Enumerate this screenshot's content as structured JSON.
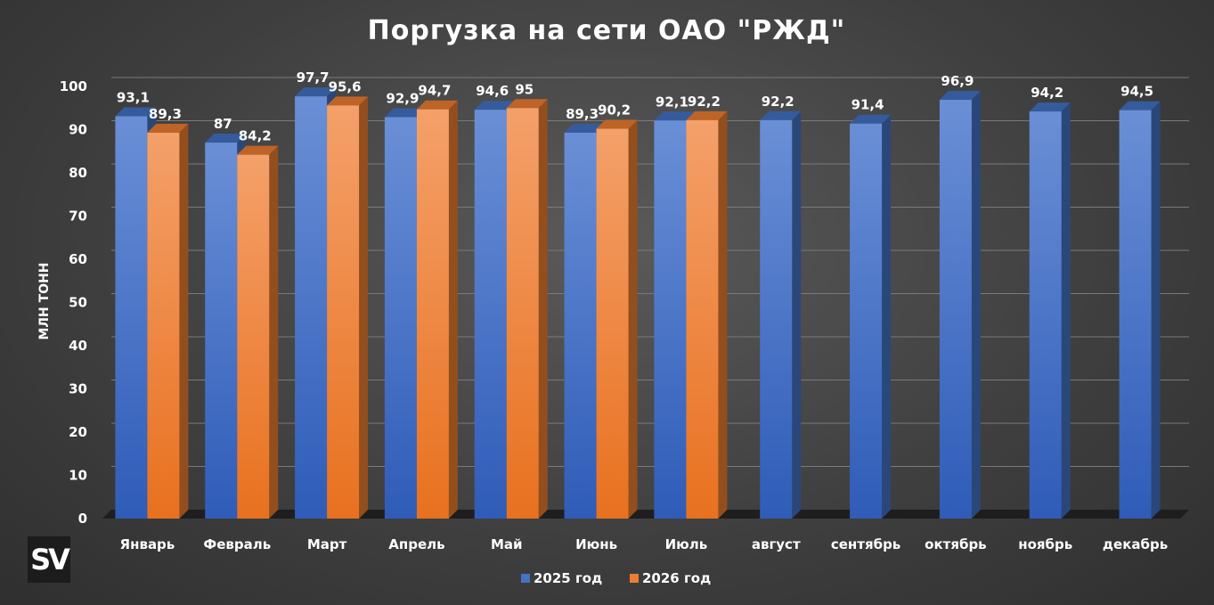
{
  "chart_data": {
    "type": "bar",
    "title": "Поргузка на сети ОАО \"РЖД\"",
    "ylabel": "МЛН ТОНН",
    "xlabel": "",
    "ylim": [
      0,
      100
    ],
    "yticks": [
      0,
      10,
      20,
      30,
      40,
      50,
      60,
      70,
      80,
      90,
      100
    ],
    "grid": true,
    "legend_position": "bottom",
    "categories": [
      "Январь",
      "Февраль",
      "Март",
      "Апрель",
      "Май",
      "Июнь",
      "Июль",
      "август",
      "сентябрь",
      "октябрь",
      "ноябрь",
      "декабрь"
    ],
    "series": [
      {
        "name": "2025 год",
        "color": "#4472c4",
        "values": [
          93.1,
          87,
          97.7,
          92.9,
          94.6,
          89.3,
          92.1,
          92.2,
          91.4,
          96.9,
          94.2,
          94.5
        ],
        "labels": [
          "93,1",
          "87",
          "97,7",
          "92,9",
          "94,6",
          "89,3",
          "92,1",
          "92,2",
          "91,4",
          "96,9",
          "94,2",
          "94,5"
        ]
      },
      {
        "name": "2026 год",
        "color": "#ed7d31",
        "values": [
          89.3,
          84.2,
          95.6,
          94.7,
          95,
          90.2,
          92.2,
          null,
          null,
          null,
          null,
          null
        ],
        "labels": [
          "89,3",
          "84,2",
          "95,6",
          "94,7",
          "95",
          "90,2",
          "92,2",
          null,
          null,
          null,
          null,
          null
        ]
      }
    ]
  },
  "watermark": {
    "text": "SV"
  }
}
